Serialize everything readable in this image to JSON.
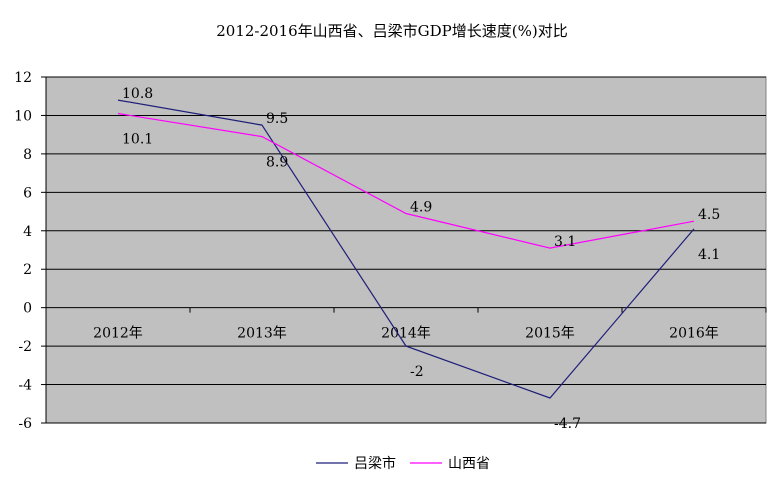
{
  "chart_data": {
    "type": "line",
    "title": "2012-2016年山西省、吕梁市GDP增长速度(%)对比",
    "categories": [
      "2012年",
      "2013年",
      "2014年",
      "2015年",
      "2016年"
    ],
    "series": [
      {
        "name": "吕梁市",
        "color": "#1f1f7a",
        "values": [
          10.8,
          9.5,
          -2,
          -4.7,
          4.1
        ],
        "data_labels": [
          "10.8",
          "9.5",
          "-2",
          "-4.7",
          "4.1"
        ]
      },
      {
        "name": "山西省",
        "color": "#ff00ff",
        "values": [
          10.1,
          8.9,
          4.9,
          3.1,
          4.5
        ],
        "data_labels": [
          "10.1",
          "8.9",
          "4.9",
          "3.1",
          "4.5"
        ]
      }
    ],
    "y_ticks": [
      "12",
      "10",
      "8",
      "6",
      "4",
      "2",
      "0",
      "-2",
      "-4",
      "-6"
    ],
    "ylim": [
      -6,
      12
    ],
    "xlabel": "",
    "ylabel": "",
    "grid": true,
    "legend_position": "bottom",
    "plot_background": "#c0c0c0"
  }
}
